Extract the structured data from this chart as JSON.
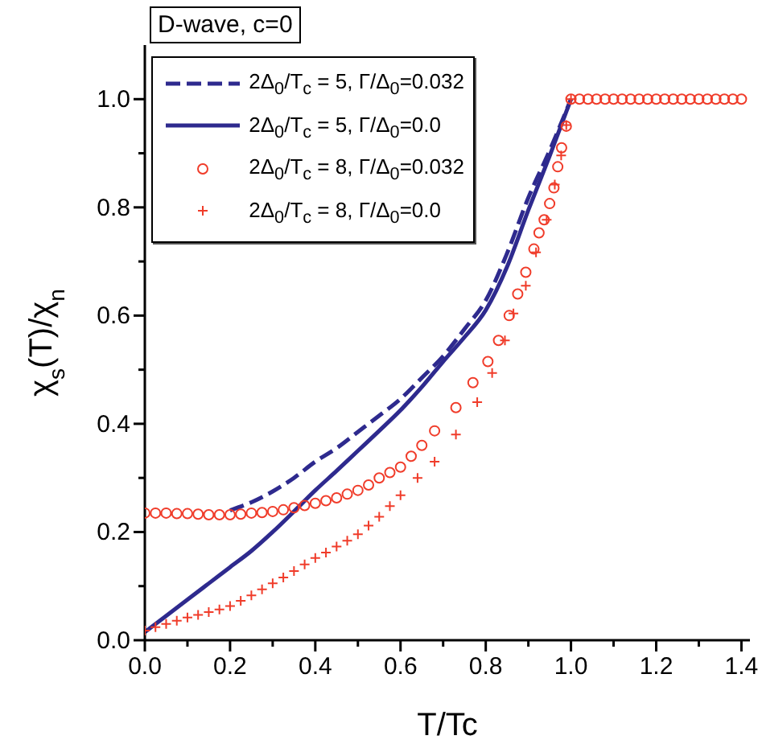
{
  "chart_data": {
    "type": "line",
    "title": "D-wave, c=0",
    "xlabel": "T/Tc",
    "ylabel": "χ$_{s}$(T)/χ$_{n}$",
    "xlim": [
      0,
      1.42
    ],
    "ylim": [
      0,
      1.1
    ],
    "xticks": [
      {
        "value": 0,
        "label": "0.0"
      },
      {
        "value": 0.1,
        "label": null
      },
      {
        "value": 0.2,
        "label": "0.2"
      },
      {
        "value": 0.3,
        "label": null
      },
      {
        "value": 0.4,
        "label": "0.4"
      },
      {
        "value": 0.5,
        "label": null
      },
      {
        "value": 0.6,
        "label": "0.6"
      },
      {
        "value": 0.7,
        "label": null
      },
      {
        "value": 0.8,
        "label": "0.8"
      },
      {
        "value": 0.9,
        "label": null
      },
      {
        "value": 1,
        "label": "1.0"
      },
      {
        "value": 1.1,
        "label": null
      },
      {
        "value": 1.2,
        "label": "1.2"
      },
      {
        "value": 1.3,
        "label": null
      },
      {
        "value": 1.4,
        "label": "1.4"
      }
    ],
    "yticks": [
      {
        "value": 0,
        "label": "0.0"
      },
      {
        "value": 0.1,
        "label": null
      },
      {
        "value": 0.2,
        "label": "0.2"
      },
      {
        "value": 0.3,
        "label": null
      },
      {
        "value": 0.4,
        "label": "0.4"
      },
      {
        "value": 0.5,
        "label": null
      },
      {
        "value": 0.6,
        "label": "0.6"
      },
      {
        "value": 0.7,
        "label": null
      },
      {
        "value": 0.8,
        "label": "0.8"
      },
      {
        "value": 0.9,
        "label": null
      },
      {
        "value": 1,
        "label": "1.0"
      }
    ],
    "legend": "top left",
    "series": [
      {
        "name": "2Δ$_{0}$/T$_{c}$ = 5, Γ/Δ$_{0}$=0.032",
        "color": "#2e2a8e",
        "line_style": "dashed",
        "marker": "none",
        "x": [
          0.2,
          0.25,
          0.3,
          0.35,
          0.4,
          0.45,
          0.5,
          0.55,
          0.6,
          0.65,
          0.7,
          0.75,
          0.8,
          0.85,
          0.9,
          0.95,
          1.0
        ],
        "values": [
          0.24,
          0.255,
          0.275,
          0.3,
          0.33,
          0.355,
          0.385,
          0.415,
          0.446,
          0.485,
          0.525,
          0.575,
          0.628,
          0.715,
          0.818,
          0.905,
          1.0
        ]
      },
      {
        "name": "2Δ$_{0}$/T$_{c}$ = 5, Γ/Δ$_{0}$=0.0",
        "color": "#2e2a8e",
        "line_style": "solid",
        "marker": "none",
        "x": [
          0,
          0.05,
          0.1,
          0.15,
          0.2,
          0.25,
          0.3,
          0.35,
          0.4,
          0.45,
          0.5,
          0.55,
          0.6,
          0.65,
          0.7,
          0.75,
          0.8,
          0.85,
          0.9,
          0.95,
          1.0
        ],
        "values": [
          0.015,
          0.045,
          0.075,
          0.105,
          0.135,
          0.165,
          0.2,
          0.238,
          0.277,
          0.313,
          0.35,
          0.387,
          0.425,
          0.468,
          0.515,
          0.56,
          0.61,
          0.69,
          0.795,
          0.895,
          1.0
        ]
      },
      {
        "name": "2Δ$_{0}$/T$_{c}$ = 8, Γ/Δ$_{0}$=0.032",
        "type": "scatter",
        "color": "#f03c2a",
        "marker": "circle",
        "x": [
          0,
          0.025,
          0.05,
          0.075,
          0.1,
          0.125,
          0.15,
          0.175,
          0.2,
          0.225,
          0.25,
          0.275,
          0.3,
          0.325,
          0.35,
          0.375,
          0.4,
          0.425,
          0.45,
          0.475,
          0.5,
          0.525,
          0.55,
          0.575,
          0.6,
          0.625,
          0.65,
          0.68,
          0.73,
          0.77,
          0.805,
          0.83,
          0.855,
          0.875,
          0.894,
          0.913,
          0.925,
          0.937,
          0.95,
          0.96,
          0.969,
          0.978,
          0.989,
          1.0,
          1.02,
          1.04,
          1.06,
          1.08,
          1.1,
          1.12,
          1.14,
          1.16,
          1.18,
          1.2,
          1.22,
          1.24,
          1.26,
          1.28,
          1.3,
          1.32,
          1.34,
          1.36,
          1.38,
          1.4
        ],
        "values": [
          0.235,
          0.235,
          0.235,
          0.234,
          0.234,
          0.233,
          0.232,
          0.232,
          0.232,
          0.233,
          0.235,
          0.236,
          0.238,
          0.241,
          0.245,
          0.249,
          0.253,
          0.258,
          0.263,
          0.27,
          0.277,
          0.287,
          0.3,
          0.31,
          0.32,
          0.34,
          0.36,
          0.387,
          0.43,
          0.476,
          0.515,
          0.554,
          0.6,
          0.64,
          0.68,
          0.723,
          0.753,
          0.777,
          0.807,
          0.836,
          0.875,
          0.91,
          0.95,
          1.0,
          1.0,
          1.0,
          1.0,
          1.0,
          1.0,
          1.0,
          1.0,
          1.0,
          1.0,
          1.0,
          1.0,
          1.0,
          1.0,
          1.0,
          1.0,
          1.0,
          1.0,
          1.0,
          1.0,
          1.0
        ]
      },
      {
        "name": "2Δ$_{0}$/T$_{c}$ = 8, Γ/Δ$_{0}$=0.0",
        "type": "scatter",
        "color": "#f03c2a",
        "marker": "cross",
        "x": [
          0,
          0.025,
          0.05,
          0.075,
          0.1,
          0.125,
          0.15,
          0.175,
          0.2,
          0.225,
          0.25,
          0.275,
          0.3,
          0.325,
          0.35,
          0.375,
          0.4,
          0.425,
          0.45,
          0.475,
          0.5,
          0.525,
          0.55,
          0.575,
          0.6,
          0.64,
          0.68,
          0.73,
          0.78,
          0.815,
          0.845,
          0.865,
          0.894,
          0.918,
          0.943,
          0.962,
          0.977,
          0.989,
          1.0
        ],
        "values": [
          0.018,
          0.024,
          0.03,
          0.036,
          0.042,
          0.047,
          0.052,
          0.057,
          0.063,
          0.073,
          0.083,
          0.094,
          0.105,
          0.116,
          0.128,
          0.14,
          0.152,
          0.162,
          0.173,
          0.184,
          0.196,
          0.212,
          0.228,
          0.248,
          0.268,
          0.3,
          0.33,
          0.38,
          0.44,
          0.494,
          0.554,
          0.604,
          0.655,
          0.717,
          0.777,
          0.842,
          0.896,
          0.952,
          1.0
        ]
      }
    ]
  }
}
